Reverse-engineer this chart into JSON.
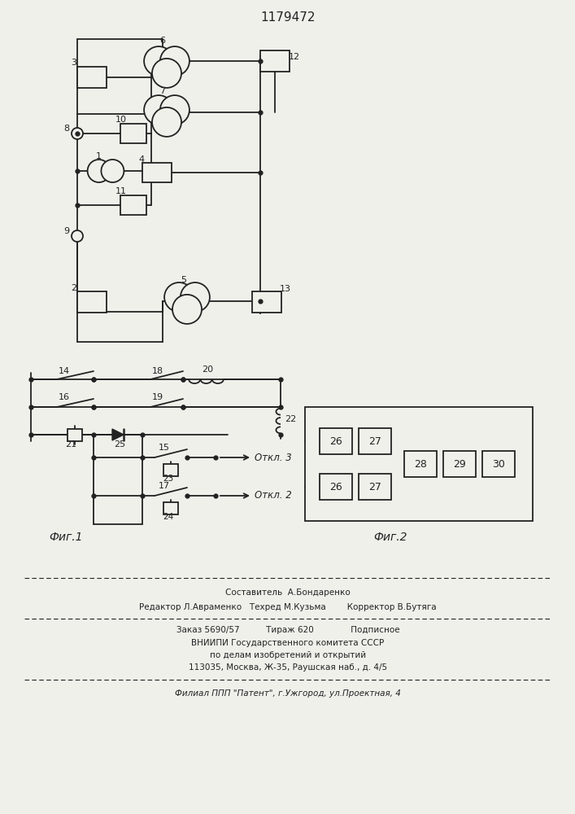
{
  "title": "1179472",
  "fig1_label": "Фиг.1",
  "fig2_label": "Фиг.2",
  "footer_lines": [
    "Составитель  А.Бондаренко",
    "Редактор Л.Авраменко   Техред М.Кузьма        Корректор В.Бутяга",
    "Заказ 5690/57          Тираж 620              Подписное",
    "ВНИИПИ Государственного комитета СССР",
    "по делам изобретений и открытий",
    "113035, Москва, Ж-35, Раушская наб., д. 4/5",
    "Филиал ППП \"Патент\", г.Ужгород, ул.Проектная, 4"
  ],
  "bg_color": "#f0f0eb",
  "line_color": "#222222"
}
